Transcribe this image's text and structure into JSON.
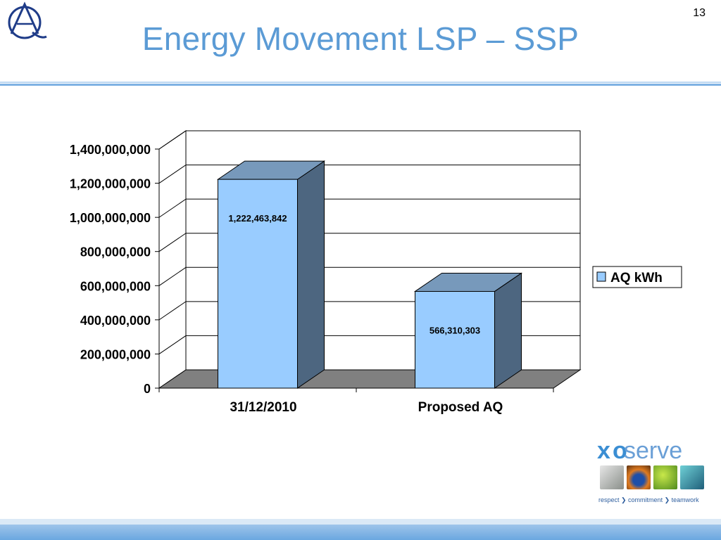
{
  "slide": {
    "title": "Energy Movement LSP – SSP",
    "page_number": "13"
  },
  "logo": {
    "name": "Alpha-Q monogram logo",
    "letters": "AQ"
  },
  "xoserve": {
    "brand": "xoserve",
    "tagline_parts": [
      "respect",
      "commitment",
      "teamwork"
    ],
    "colors": {
      "xo": "#3b8ed3",
      "serve": "#6a9fd6"
    }
  },
  "chart_data": {
    "type": "bar",
    "style": "3d-column",
    "categories": [
      "31/12/2010",
      "Proposed AQ"
    ],
    "series": [
      {
        "name": "AQ kWh",
        "values": [
          1222463842,
          566310303
        ],
        "data_labels": [
          "1,222,463,842",
          "566,310,303"
        ],
        "color": "#99ccff"
      }
    ],
    "ylim": [
      0,
      1400000000
    ],
    "yticks": [
      0,
      200000000,
      400000000,
      600000000,
      800000000,
      1000000000,
      1200000000,
      1400000000
    ],
    "ytick_labels": [
      "0",
      "200,000,000",
      "400,000,000",
      "600,000,000",
      "800,000,000",
      "1,000,000,000",
      "1,200,000,000",
      "1,400,000,000"
    ],
    "grid": true,
    "legend": "right",
    "colors": {
      "bar_front": "#99ccff",
      "bar_top": "#7799bb",
      "bar_side": "#4d6680",
      "floor": "#808080"
    }
  }
}
